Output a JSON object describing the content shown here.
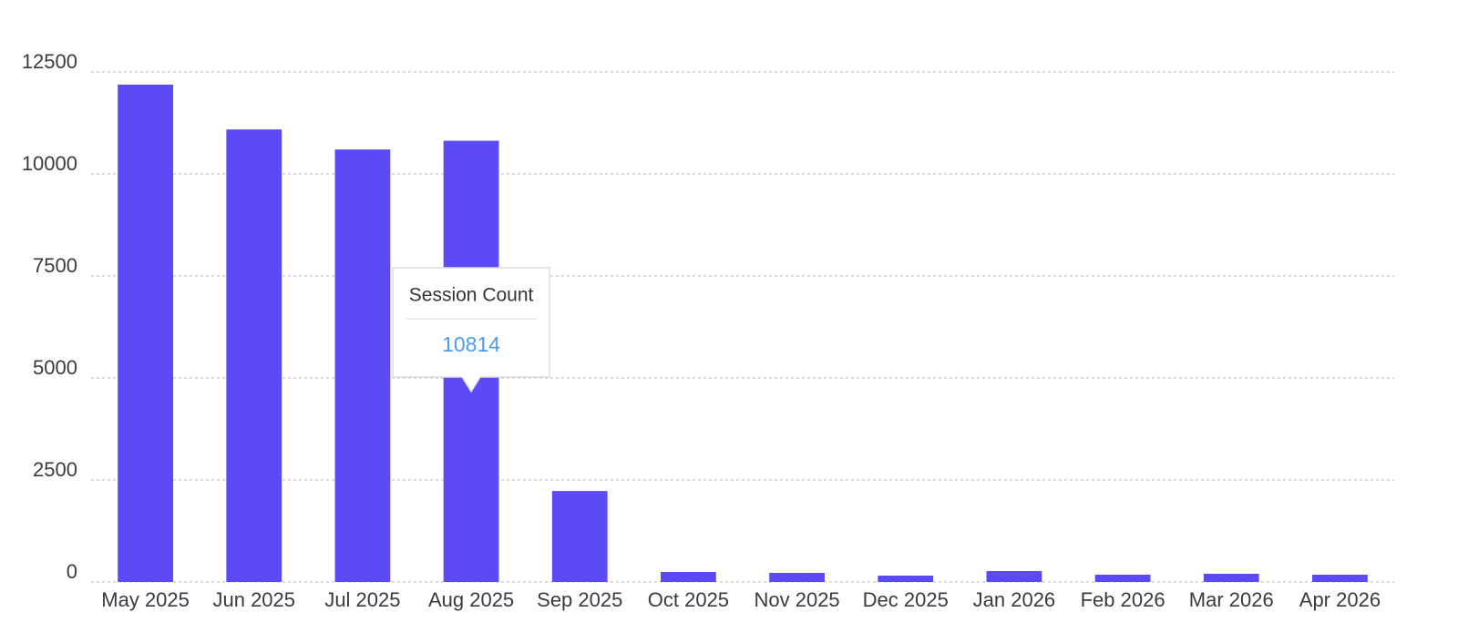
{
  "chart_data": {
    "type": "bar",
    "categories": [
      "May 2025",
      "Jun 2025",
      "Jul 2025",
      "Aug 2025",
      "Sep 2025",
      "Oct 2025",
      "Nov 2025",
      "Dec 2025",
      "Jan 2026",
      "Feb 2026",
      "Mar 2026",
      "Apr 2026"
    ],
    "series": [
      {
        "name": "Session Count",
        "color": "#5b4af5",
        "values": [
          12190,
          11090,
          10600,
          10814,
          2230,
          246,
          223,
          156,
          268,
          179,
          201,
          179
        ]
      }
    ],
    "ylim": [
      0,
      12500
    ],
    "yticks": [
      0,
      2500,
      5000,
      7500,
      10000,
      12500
    ],
    "grid": true
  }
}
